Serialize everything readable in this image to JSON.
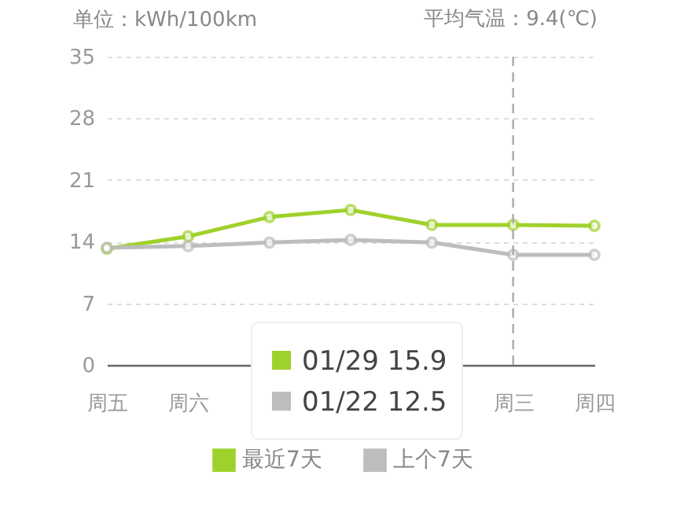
{
  "chart_data": {
    "type": "line",
    "ylabel": "单位：kWh/100km",
    "categories": [
      "周五",
      "周六",
      null,
      null,
      null,
      "周三",
      "周四"
    ],
    "series": [
      {
        "name": "最近7天",
        "color": "#9fd12c",
        "values": [
          13.2,
          14.6,
          16.8,
          17.6,
          15.9,
          15.9,
          15.8
        ]
      },
      {
        "name": "上个7天",
        "color": "#bdbdbd",
        "values": [
          13.3,
          13.5,
          13.9,
          14.2,
          13.9,
          12.5,
          12.5
        ]
      }
    ],
    "ylim": [
      0,
      35
    ],
    "yticks": [
      0,
      7,
      14,
      21,
      28,
      35
    ],
    "grid": "y",
    "marker": "circle",
    "line_style": "solid",
    "legend": "bottom",
    "ref_lines": [
      {
        "axis": "x",
        "value": "周三",
        "color": "#aaaaaa",
        "line_style": "dashed"
      }
    ],
    "annotations": [
      "平均气温：9.4(℃)",
      "01/29 15.9",
      "01/22 12.5"
    ]
  }
}
